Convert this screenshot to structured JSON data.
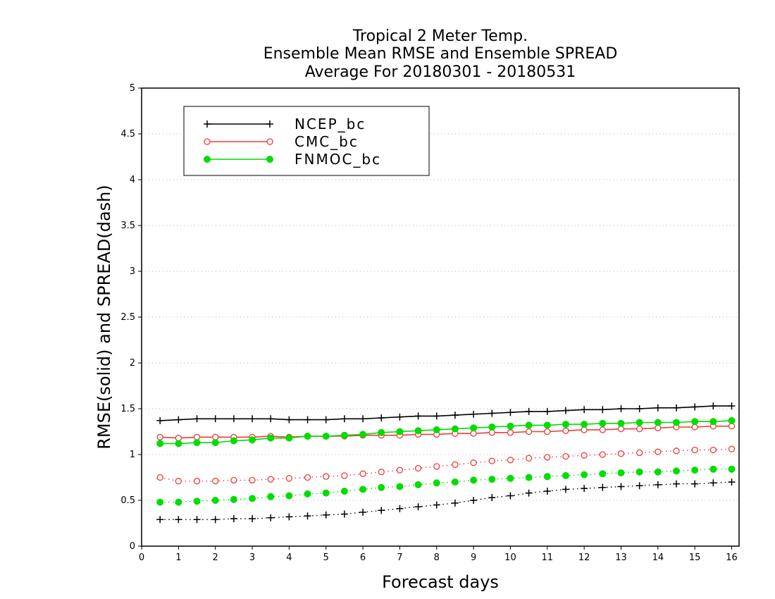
{
  "chart_data": {
    "type": "line",
    "title": [
      "Tropical 2 Meter Temp.",
      "Ensemble Mean RMSE and Ensemble SPREAD",
      "Average For 20180301 - 20180531"
    ],
    "xlabel": "Forecast days",
    "ylabel": "RMSE(solid) and SPREAD(dash)",
    "xlim": [
      0,
      16.2
    ],
    "ylim": [
      0,
      5
    ],
    "xticks": [
      "0",
      "1",
      "2",
      "3",
      "4",
      "5",
      "6",
      "7",
      "8",
      "9",
      "10",
      "11",
      "12",
      "13",
      "14",
      "15",
      "16"
    ],
    "yticks": [
      "0",
      "0.5",
      "1",
      "1.5",
      "2",
      "2.5",
      "3",
      "3.5",
      "4",
      "4.5",
      "5"
    ],
    "grid": true,
    "legend_position": "top-left",
    "x": [
      0.5,
      1,
      1.5,
      2,
      2.5,
      3,
      3.5,
      4,
      4.5,
      5,
      5.5,
      6,
      6.5,
      7,
      7.5,
      8,
      8.5,
      9,
      9.5,
      10,
      10.5,
      11,
      11.5,
      12,
      12.5,
      13,
      13.5,
      14,
      14.5,
      15,
      15.5,
      16
    ],
    "series": [
      {
        "name": "NCEP_bc",
        "color": "#000000",
        "marker": "plus",
        "rmse": [
          1.37,
          1.38,
          1.39,
          1.39,
          1.39,
          1.39,
          1.39,
          1.38,
          1.38,
          1.38,
          1.39,
          1.39,
          1.4,
          1.41,
          1.42,
          1.42,
          1.43,
          1.44,
          1.45,
          1.46,
          1.47,
          1.47,
          1.48,
          1.49,
          1.49,
          1.5,
          1.5,
          1.51,
          1.51,
          1.52,
          1.53,
          1.53
        ],
        "spread": [
          0.29,
          0.29,
          0.29,
          0.29,
          0.3,
          0.3,
          0.31,
          0.32,
          0.33,
          0.34,
          0.35,
          0.37,
          0.39,
          0.41,
          0.43,
          0.45,
          0.47,
          0.5,
          0.53,
          0.55,
          0.58,
          0.6,
          0.62,
          0.63,
          0.64,
          0.65,
          0.66,
          0.67,
          0.68,
          0.68,
          0.69,
          0.7
        ]
      },
      {
        "name": "CMC_bc",
        "color": "#ee3b3b",
        "marker": "open-circle",
        "rmse": [
          1.19,
          1.18,
          1.19,
          1.19,
          1.19,
          1.19,
          1.2,
          1.19,
          1.2,
          1.2,
          1.2,
          1.21,
          1.21,
          1.21,
          1.22,
          1.22,
          1.23,
          1.23,
          1.24,
          1.24,
          1.25,
          1.25,
          1.26,
          1.27,
          1.27,
          1.28,
          1.28,
          1.29,
          1.3,
          1.3,
          1.31,
          1.31
        ],
        "spread": [
          0.75,
          0.71,
          0.71,
          0.71,
          0.72,
          0.72,
          0.73,
          0.74,
          0.75,
          0.76,
          0.77,
          0.79,
          0.81,
          0.83,
          0.85,
          0.87,
          0.89,
          0.91,
          0.93,
          0.94,
          0.96,
          0.97,
          0.98,
          0.99,
          1.0,
          1.01,
          1.02,
          1.03,
          1.04,
          1.05,
          1.05,
          1.06
        ]
      },
      {
        "name": "FNMOC_bc",
        "color": "#00dd00",
        "marker": "filled-circle",
        "rmse": [
          1.12,
          1.12,
          1.13,
          1.13,
          1.15,
          1.16,
          1.18,
          1.18,
          1.2,
          1.2,
          1.21,
          1.22,
          1.24,
          1.25,
          1.26,
          1.27,
          1.28,
          1.29,
          1.3,
          1.31,
          1.32,
          1.32,
          1.33,
          1.33,
          1.34,
          1.34,
          1.35,
          1.35,
          1.35,
          1.36,
          1.36,
          1.37
        ],
        "spread": [
          0.48,
          0.48,
          0.49,
          0.5,
          0.51,
          0.52,
          0.54,
          0.55,
          0.57,
          0.58,
          0.6,
          0.62,
          0.64,
          0.65,
          0.67,
          0.69,
          0.7,
          0.72,
          0.73,
          0.74,
          0.75,
          0.76,
          0.77,
          0.78,
          0.79,
          0.8,
          0.81,
          0.81,
          0.82,
          0.83,
          0.84,
          0.84
        ]
      }
    ]
  }
}
